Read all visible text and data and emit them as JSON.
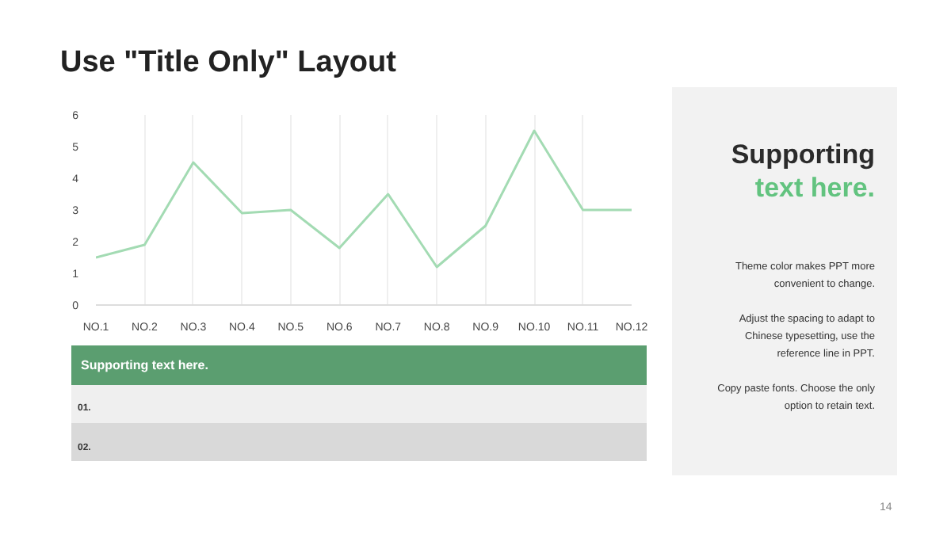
{
  "chart_data": {
    "type": "line",
    "title": "Use \"Title Only\" Layout",
    "categories": [
      "NO.1",
      "NO.2",
      "NO.3",
      "NO.4",
      "NO.5",
      "NO.6",
      "NO.7",
      "NO.8",
      "NO.9",
      "NO.10",
      "NO.11",
      "NO.12"
    ],
    "values": [
      1.5,
      1.9,
      4.5,
      2.9,
      3.0,
      1.8,
      3.5,
      1.2,
      2.5,
      5.5,
      3.0,
      3.0
    ],
    "color": "#a3dbb3",
    "ylim": [
      0,
      6
    ],
    "yticks": [
      0,
      1,
      2,
      3,
      4,
      5,
      6
    ],
    "grid": "x",
    "marker": "none",
    "line_style": "solid",
    "annotations": [
      "Supporting",
      "text here.",
      "Theme color makes PPT more convenient to change.",
      "Adjust the spacing to adapt to Chinese typesetting, use the reference line in PPT.",
      "Copy paste  fonts. Choose the only option to retain text.",
      "Supporting text here.",
      "01.",
      "02.",
      "14"
    ]
  }
}
